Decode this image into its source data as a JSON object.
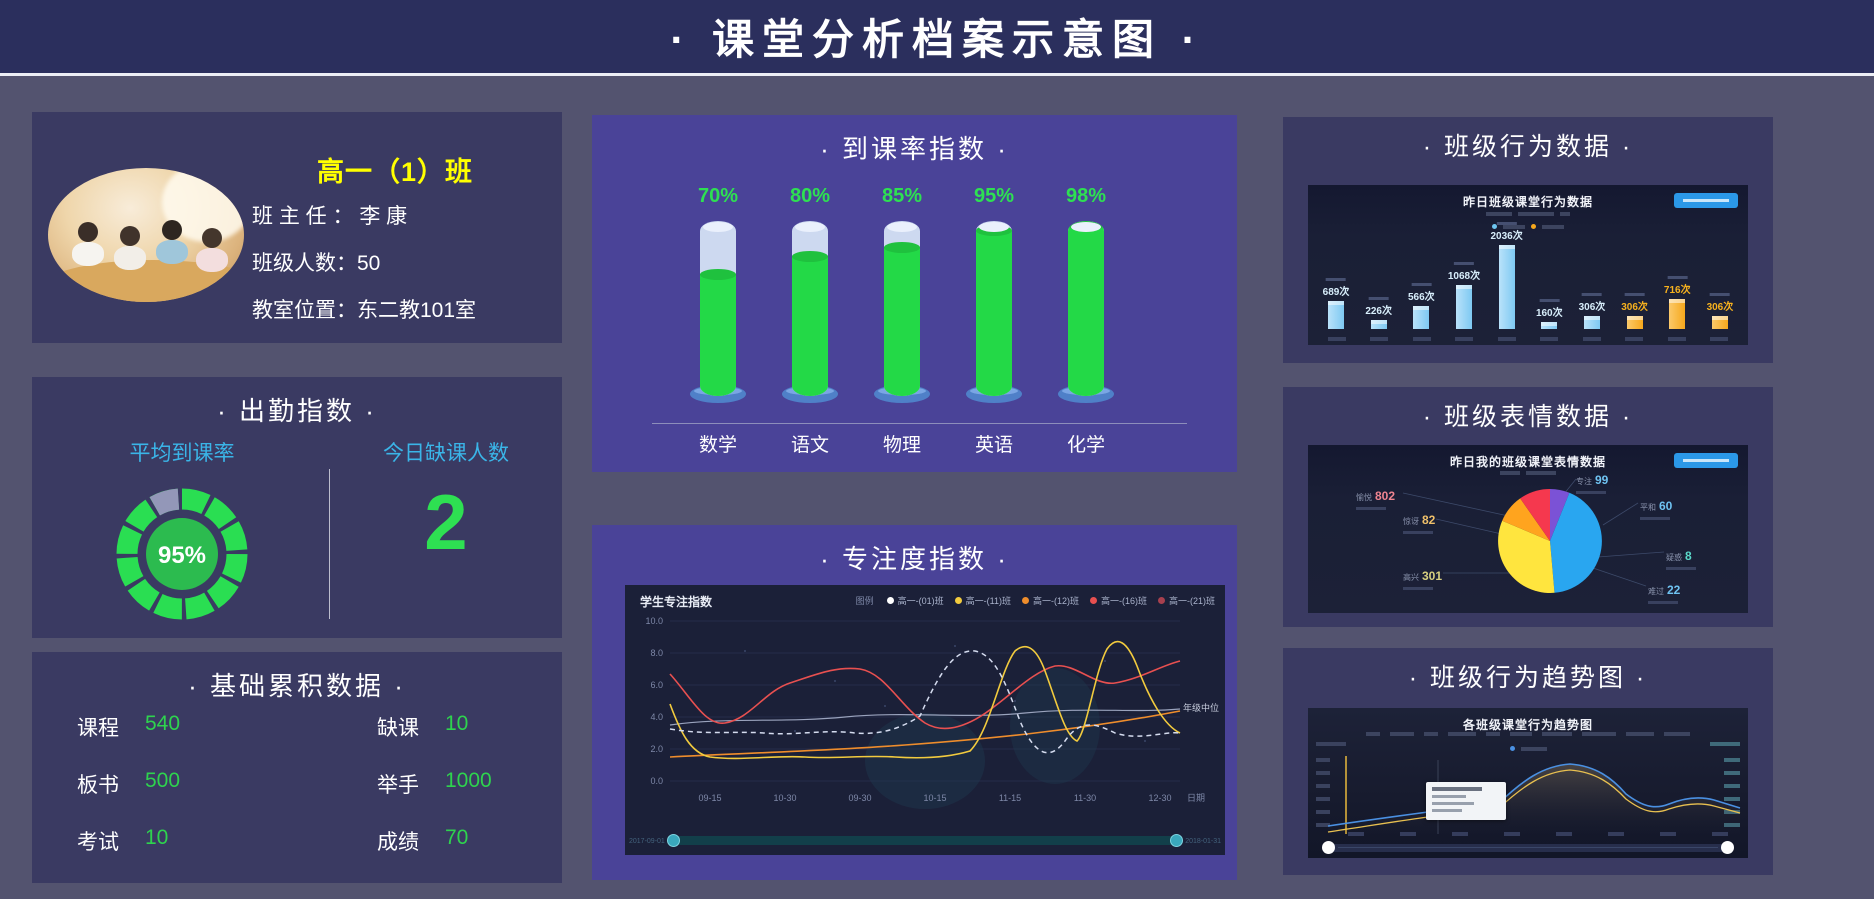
{
  "header": {
    "title": "· 课堂分析档案示意图 ·"
  },
  "class_info": {
    "name": "高一（1）班",
    "teacher": "班 主 任 ： 李 康",
    "students": "班级人数：50",
    "room": "教室位置：东二教101室"
  },
  "attendance_panel": {
    "title": "· 出勤指数 ·",
    "avg_label": "平均到课率",
    "avg_value": "95%",
    "absent_label": "今日缺课人数",
    "absent_value": "2"
  },
  "basic_panel": {
    "title": "· 基础累积数据 ·",
    "items": [
      {
        "label": "课程",
        "value": "540"
      },
      {
        "label": "缺课",
        "value": "10"
      },
      {
        "label": "板书",
        "value": "500"
      },
      {
        "label": "举手",
        "value": "1000"
      },
      {
        "label": "考试",
        "value": "10"
      },
      {
        "label": "成绩",
        "value": "70"
      }
    ]
  },
  "rate_panel": {
    "title": "· 到课率指数 ·",
    "items": [
      {
        "subject": "数学",
        "percent": "70%"
      },
      {
        "subject": "语文",
        "percent": "80%"
      },
      {
        "subject": "物理",
        "percent": "85%"
      },
      {
        "subject": "英语",
        "percent": "95%"
      },
      {
        "subject": "化学",
        "percent": "98%"
      }
    ]
  },
  "focus_panel": {
    "title": "· 专注度指数 ·",
    "chart_title": "学生专注指数",
    "legend_label": "图例",
    "legend": [
      {
        "name": "高一-(01)班",
        "color": "#ffffff"
      },
      {
        "name": "高一-(11)班",
        "color": "#f2cb3e"
      },
      {
        "name": "高一-(12)班",
        "color": "#ef8d2c"
      },
      {
        "name": "高一-(16)班",
        "color": "#e85050"
      },
      {
        "name": "高一-(21)班",
        "color": "#a8404e"
      }
    ],
    "y_ticks": [
      "10.0",
      "8.0",
      "6.0",
      "4.0",
      "2.0",
      "0.0"
    ],
    "x_ticks": [
      "09-15",
      "10-30",
      "09-30",
      "10-15",
      "11-15",
      "11-30",
      "12-30"
    ],
    "median_label": "年级中位",
    "axis_label": "日期",
    "range_start": "2017-09-01",
    "range_end": "2018-01-31"
  },
  "behavior_panel": {
    "title": "· 班级行为数据 ·",
    "chart_title": "昨日班级课堂行为数据",
    "bars": [
      {
        "value": "689次",
        "v": 689,
        "color": "#7ec9f2",
        "light": "#b9e2fa",
        "text": "#d8eefb"
      },
      {
        "value": "226次",
        "v": 226,
        "color": "#7ec9f2",
        "light": "#b9e2fa",
        "text": "#d8eefb"
      },
      {
        "value": "566次",
        "v": 566,
        "color": "#7ec9f2",
        "light": "#b9e2fa",
        "text": "#d8eefb"
      },
      {
        "value": "1068次",
        "v": 1068,
        "color": "#7ec9f2",
        "light": "#b9e2fa",
        "text": "#d8eefb"
      },
      {
        "value": "2036次",
        "v": 2036,
        "color": "#7ec9f2",
        "light": "#b9e2fa",
        "text": "#d8eefb"
      },
      {
        "value": "160次",
        "v": 160,
        "color": "#7ec9f2",
        "light": "#b9e2fa",
        "text": "#d8eefb"
      },
      {
        "value": "306次",
        "v": 306,
        "color": "#7ec9f2",
        "light": "#b9e2fa",
        "text": "#d8eefb"
      },
      {
        "value": "306次",
        "v": 306,
        "color": "#f6a81c",
        "light": "#fbc96a",
        "text": "#f8b21e"
      },
      {
        "value": "716次",
        "v": 716,
        "color": "#f6a81c",
        "light": "#fbc96a",
        "text": "#f8b21e"
      },
      {
        "value": "306次",
        "v": 306,
        "color": "#f6a81c",
        "light": "#fbc96a",
        "text": "#f8b21e"
      }
    ]
  },
  "emotion_panel": {
    "title": "· 班级表情数据 ·",
    "chart_title": "昨日我的班级课堂表情数据",
    "labels": [
      {
        "name": "愉悦",
        "value": "802",
        "color": "#ef8490"
      },
      {
        "name": "惊讶",
        "value": "82",
        "color": "#efc06a"
      },
      {
        "name": "高兴",
        "value": "301",
        "color": "#d8d080"
      },
      {
        "name": "专注",
        "value": "99",
        "color": "#6fc3f2"
      },
      {
        "name": "平和",
        "value": "60",
        "color": "#6fc3f2"
      },
      {
        "name": "疑惑",
        "value": "8",
        "color": "#5ad8c8"
      },
      {
        "name": "难过",
        "value": "22",
        "color": "#6fc3f2"
      }
    ]
  },
  "trend_panel": {
    "title": "· 班级行为趋势图 ·",
    "chart_title": "各班级课堂行为趋势图"
  },
  "chart_data": [
    {
      "type": "pie",
      "subtype": "donut",
      "title": "平均到课率",
      "values": [
        95
      ],
      "unit": "%",
      "center_label": "95%"
    },
    {
      "type": "bar",
      "subtype": "cylinder",
      "title": "到课率指数",
      "categories": [
        "数学",
        "语文",
        "物理",
        "英语",
        "化学"
      ],
      "values": [
        70,
        80,
        85,
        95,
        98
      ],
      "unit": "%",
      "ylim": [
        0,
        100
      ]
    },
    {
      "type": "line",
      "title": "学生专注指数",
      "ylim": [
        0,
        10
      ],
      "x_ticks": [
        "09-15",
        "10-30",
        "09-30",
        "10-15",
        "11-15",
        "11-30",
        "12-30"
      ],
      "series": [
        {
          "name": "高一-(01)班",
          "color": "#ffffff",
          "values_approx": [
            3.4,
            3.0,
            3.2,
            3.5,
            3.3,
            4.0,
            8.0,
            8.3,
            4.0,
            1.5,
            3.5,
            3.0,
            4.8
          ]
        },
        {
          "name": "高一-(11)班",
          "color": "#f2cb3e",
          "values_approx": [
            4.8,
            1.5,
            1.4,
            1.6,
            1.5,
            1.8,
            2.0,
            6.9,
            8.1,
            2.5,
            8.3,
            5.0,
            3.0
          ]
        },
        {
          "name": "高一-(12)班",
          "color": "#ef8d2c",
          "values_approx": [
            1.5,
            1.7,
            1.8,
            2.0,
            2.1,
            2.2,
            2.2,
            2.3,
            2.5,
            2.8,
            3.2,
            3.8,
            4.4
          ]
        },
        {
          "name": "高一-(16)班",
          "color": "#e85050",
          "values_approx": [
            6.7,
            3.5,
            5.0,
            6.1,
            7.0,
            7.5,
            5.5,
            3.6,
            2.9,
            4.6,
            5.6,
            7.2,
            7.5
          ]
        },
        {
          "name": "高一-(21)班",
          "color": "#a8404e",
          "values_approx": [
            3.5,
            4.0,
            3.6,
            4.0,
            4.4,
            4.2,
            4.6,
            4.0,
            4.4,
            4.2,
            4.5,
            4.3,
            4.5
          ]
        }
      ]
    },
    {
      "type": "bar",
      "title": "昨日班级课堂行为数据",
      "values": [
        689,
        226,
        566,
        1068,
        2036,
        160,
        306,
        306,
        716,
        306
      ],
      "unit": "次",
      "series": [
        {
          "name": "blue-group",
          "values": [
            689,
            226,
            566,
            1068,
            2036,
            160,
            306
          ]
        },
        {
          "name": "orange-group",
          "values": [
            306,
            716,
            306
          ]
        }
      ]
    },
    {
      "type": "pie",
      "title": "昨日我的班级课堂表情数据",
      "slices": [
        {
          "name": "愉悦",
          "value": 802
        },
        {
          "name": "惊讶",
          "value": 82
        },
        {
          "name": "高兴",
          "value": 301
        },
        {
          "name": "专注",
          "value": 99
        },
        {
          "name": "平和",
          "value": 60
        },
        {
          "name": "疑惑",
          "value": 8
        },
        {
          "name": "难过",
          "value": 22
        }
      ]
    },
    {
      "type": "area",
      "title": "各班级课堂行为趋势图",
      "series": [
        {
          "name": "blue-line"
        },
        {
          "name": "yellow-line"
        }
      ]
    }
  ]
}
